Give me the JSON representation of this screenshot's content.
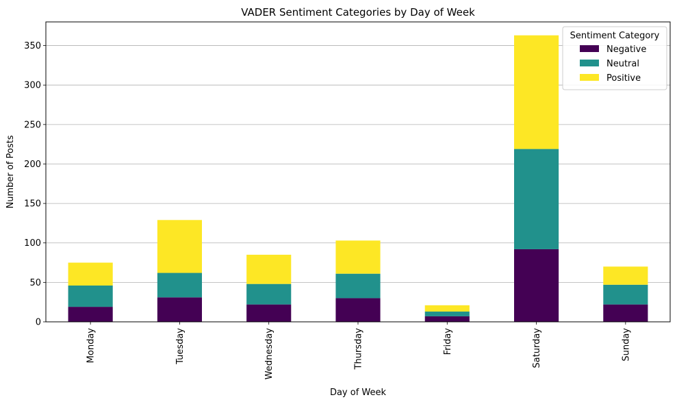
{
  "chart_data": {
    "type": "bar",
    "stacked": true,
    "title": "VADER Sentiment Categories by Day of Week",
    "xlabel": "Day of Week",
    "ylabel": "Number of Posts",
    "categories": [
      "Monday",
      "Tuesday",
      "Wednesday",
      "Thursday",
      "Friday",
      "Saturday",
      "Sunday"
    ],
    "series": [
      {
        "name": "Negative",
        "color": "#440154",
        "values": [
          19,
          31,
          22,
          30,
          7,
          92,
          22
        ]
      },
      {
        "name": "Neutral",
        "color": "#21918c",
        "values": [
          27,
          31,
          26,
          31,
          6,
          127,
          25
        ]
      },
      {
        "name": "Positive",
        "color": "#fde725",
        "values": [
          29,
          67,
          37,
          42,
          8,
          144,
          23
        ]
      }
    ],
    "ylim": [
      0,
      380
    ],
    "yticks": [
      0,
      50,
      100,
      150,
      200,
      250,
      300,
      350
    ],
    "grid": "y",
    "legend": {
      "title": "Sentiment Category",
      "placement": "top-right"
    }
  }
}
